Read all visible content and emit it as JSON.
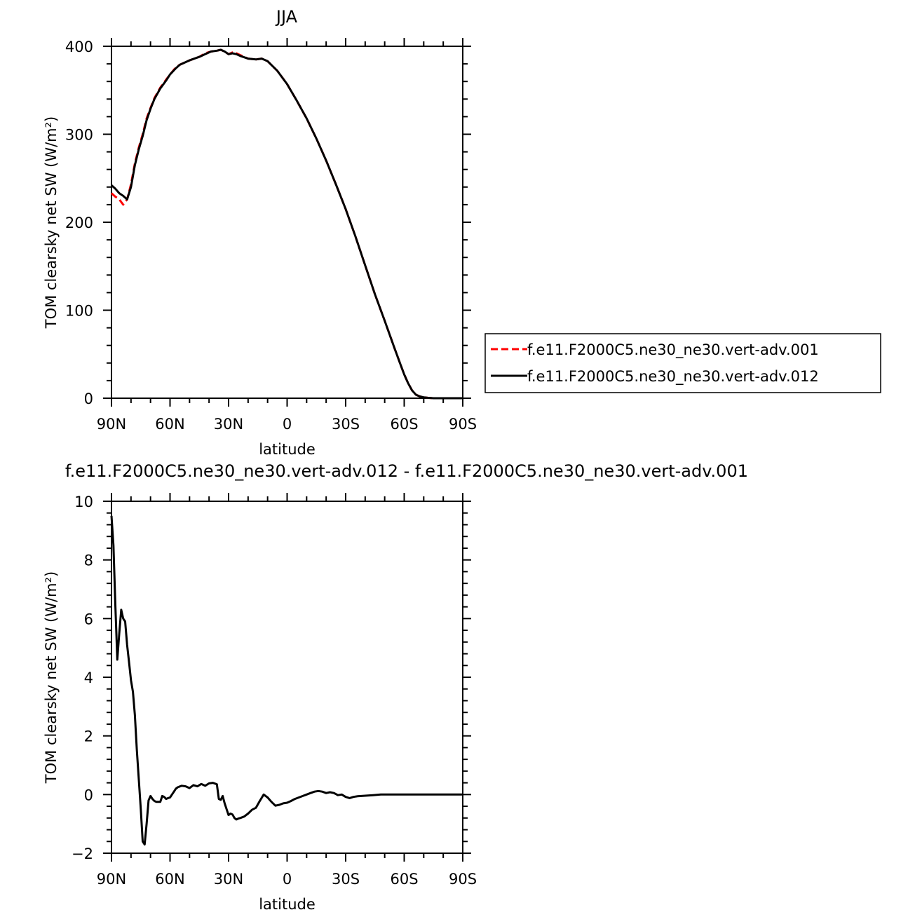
{
  "chart_data": [
    {
      "type": "line",
      "title": "JJA",
      "xlabel": "latitude",
      "ylabel": "TOM clearsky net SW (W/m²)",
      "xlim": [
        90,
        -90
      ],
      "ylim": [
        0,
        400
      ],
      "x_ticks": [
        {
          "value": 90,
          "label": "90N"
        },
        {
          "value": 60,
          "label": "60N"
        },
        {
          "value": 30,
          "label": "30N"
        },
        {
          "value": 0,
          "label": "0"
        },
        {
          "value": -30,
          "label": "30S"
        },
        {
          "value": -60,
          "label": "60S"
        },
        {
          "value": -90,
          "label": "90S"
        }
      ],
      "y_ticks": [
        0,
        100,
        200,
        300,
        400
      ],
      "legend": {
        "placement": "right"
      },
      "series": [
        {
          "name": "f.e11.F2000C5.ne30_ne30.vert-adv.001",
          "color": "#ff0000",
          "dash": "dashed",
          "x": [
            90,
            88,
            86,
            84,
            82,
            80,
            78,
            76,
            74,
            72,
            70,
            68,
            65,
            62,
            60,
            57,
            55,
            50,
            45,
            42,
            39,
            36,
            34,
            32,
            30,
            28,
            26,
            24,
            20,
            16,
            13,
            10,
            5,
            0,
            -5,
            -10,
            -15,
            -20,
            -25,
            -30,
            -35,
            -40,
            -45,
            -50,
            -55,
            -58,
            -60,
            -62,
            -64,
            -66,
            -68,
            -70,
            -72,
            -75,
            -80,
            -85,
            -90
          ],
          "y": [
            233,
            229,
            226,
            220,
            226,
            243,
            267,
            285,
            300,
            318,
            330,
            341,
            353,
            362,
            368,
            376,
            379,
            384,
            388,
            392,
            394,
            395,
            396,
            394,
            391,
            393,
            392,
            390,
            386,
            385,
            386,
            383,
            372,
            357,
            338,
            318,
            295,
            270,
            243,
            215,
            184,
            151,
            118,
            88,
            57,
            39,
            27,
            17,
            9,
            4,
            2,
            1,
            0.5,
            0,
            0,
            0,
            0
          ]
        },
        {
          "name": "f.e11.F2000C5.ne30_ne30.vert-adv.012",
          "color": "#000000",
          "dash": "solid",
          "x": [
            90,
            88,
            86,
            84,
            82,
            80,
            78,
            76,
            74,
            72,
            70,
            68,
            65,
            62,
            60,
            57,
            55,
            50,
            45,
            42,
            39,
            36,
            34,
            32,
            30,
            28,
            26,
            24,
            20,
            16,
            13,
            10,
            5,
            0,
            -5,
            -10,
            -15,
            -20,
            -25,
            -30,
            -35,
            -40,
            -45,
            -50,
            -55,
            -58,
            -60,
            -62,
            -64,
            -66,
            -68,
            -70,
            -72,
            -75,
            -80,
            -85,
            -90
          ],
          "y": [
            242,
            238,
            233,
            230,
            226,
            240,
            265,
            283,
            298,
            316,
            329,
            340,
            352,
            361,
            368,
            375,
            379,
            384,
            388,
            391,
            394,
            395,
            396,
            394,
            391,
            392,
            391,
            389,
            386,
            385,
            386,
            383,
            372,
            357,
            338,
            318,
            295,
            270,
            243,
            215,
            184,
            151,
            118,
            88,
            57,
            39,
            27,
            17,
            9,
            4,
            2,
            1,
            0.5,
            0,
            0,
            0,
            0
          ]
        }
      ]
    },
    {
      "type": "line",
      "title": "f.e11.F2000C5.ne30_ne30.vert-adv.012 - f.e11.F2000C5.ne30_ne30.vert-adv.001",
      "xlabel": "latitude",
      "ylabel": "TOM clearsky net SW (W/m²)",
      "xlim": [
        90,
        -90
      ],
      "ylim": [
        -2,
        10
      ],
      "x_ticks": [
        {
          "value": 90,
          "label": "90N"
        },
        {
          "value": 60,
          "label": "60N"
        },
        {
          "value": 30,
          "label": "30N"
        },
        {
          "value": 0,
          "label": "0"
        },
        {
          "value": -30,
          "label": "30S"
        },
        {
          "value": -60,
          "label": "60S"
        },
        {
          "value": -90,
          "label": "90S"
        }
      ],
      "y_ticks": [
        -2,
        0,
        2,
        4,
        6,
        8,
        10
      ],
      "series": [
        {
          "color": "#000000",
          "dash": "solid",
          "x": [
            90,
            89,
            88,
            87,
            86,
            85,
            84,
            83,
            82,
            81,
            80,
            79,
            78,
            77,
            76,
            75,
            74,
            73,
            72,
            71,
            70,
            69,
            68,
            67,
            66,
            65,
            64,
            63,
            62,
            61,
            60,
            59,
            58,
            57,
            56,
            54,
            52,
            50,
            48,
            46,
            44,
            42,
            40,
            38,
            36,
            35,
            34,
            33,
            32,
            31,
            30,
            29,
            28,
            27,
            26,
            25,
            24,
            22,
            20,
            18,
            16,
            14,
            12,
            10,
            8,
            6,
            4,
            2,
            0,
            -2,
            -4,
            -6,
            -8,
            -10,
            -12,
            -14,
            -16,
            -18,
            -20,
            -22,
            -24,
            -26,
            -28,
            -30,
            -32,
            -34,
            -36,
            -38,
            -40,
            -42,
            -44,
            -46,
            -48,
            -50,
            -52,
            -55,
            -60,
            -65,
            -70,
            -80,
            -90
          ],
          "y": [
            9.5,
            8.5,
            6.4,
            4.6,
            5.5,
            6.3,
            6.0,
            5.9,
            5.1,
            4.5,
            3.9,
            3.5,
            2.7,
            1.5,
            0.5,
            -0.5,
            -1.6,
            -1.7,
            -1.0,
            -0.2,
            -0.05,
            -0.15,
            -0.22,
            -0.25,
            -0.25,
            -0.25,
            -0.05,
            -0.08,
            -0.15,
            -0.12,
            -0.1,
            0.0,
            0.1,
            0.2,
            0.25,
            0.3,
            0.28,
            0.22,
            0.32,
            0.28,
            0.36,
            0.3,
            0.38,
            0.4,
            0.35,
            -0.15,
            -0.18,
            -0.05,
            -0.3,
            -0.5,
            -0.7,
            -0.65,
            -0.68,
            -0.8,
            -0.85,
            -0.82,
            -0.8,
            -0.75,
            -0.65,
            -0.52,
            -0.45,
            -0.22,
            0.0,
            -0.1,
            -0.25,
            -0.38,
            -0.35,
            -0.3,
            -0.28,
            -0.22,
            -0.15,
            -0.1,
            -0.05,
            0.0,
            0.05,
            0.1,
            0.12,
            0.1,
            0.05,
            0.08,
            0.05,
            -0.02,
            0.0,
            -0.08,
            -0.12,
            -0.08,
            -0.06,
            -0.05,
            -0.04,
            -0.03,
            -0.02,
            -0.01,
            0.0,
            0.0,
            0.0,
            0.0,
            0.0,
            0.0,
            0.0,
            0.0,
            0.0
          ]
        }
      ]
    }
  ]
}
